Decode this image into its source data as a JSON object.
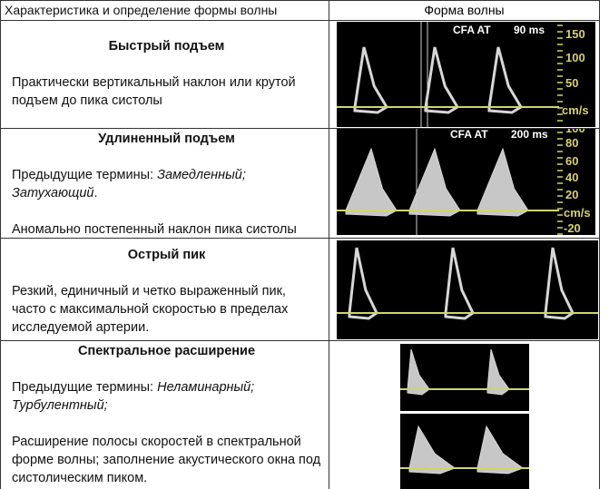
{
  "header": {
    "col1": "Характеристика и определение формы волны",
    "col2": "Форма волны"
  },
  "rows": [
    {
      "title": "Быстрый подъем",
      "paragraphs": [
        [
          {
            "text": "Практически вертикальный наклон или крутой подъем до пика систолы",
            "italic": false
          }
        ]
      ],
      "image": {
        "label": "CFA AT",
        "scale": "90 ms",
        "axis": [
          "150",
          "100",
          "50",
          "cm/s"
        ]
      }
    },
    {
      "title": "Удлиненный подъем",
      "paragraphs": [
        [
          {
            "text": "Предыдущие термины: ",
            "italic": false
          },
          {
            "text": "Замедленный; Затухающий",
            "italic": true
          },
          {
            "text": ".",
            "italic": false
          }
        ],
        [
          {
            "text": "Аномально постепенный наклон пика систолы",
            "italic": false
          }
        ]
      ],
      "image": {
        "label": "CFA AT",
        "scale": "200 ms",
        "axis": [
          "100",
          "80",
          "60",
          "40",
          "20",
          "cm/s",
          "-20"
        ]
      }
    },
    {
      "title": "Острый пик",
      "paragraphs": [
        [
          {
            "text": "Резкий, единичный и четко выраженный пик, часто с максимальной скоростью в пределах исследуемой артерии.",
            "italic": false
          }
        ]
      ]
    },
    {
      "title": "Спектральное расширение",
      "paragraphs": [
        [
          {
            "text": "Предыдущие термины: ",
            "italic": false
          },
          {
            "text": "Неламинарный; Турбулентный;",
            "italic": true
          }
        ],
        [
          {
            "text": "Расширение полосы скоростей в спектральной форме волны; заполнение акустического окна под систолическим пиком.",
            "italic": false
          }
        ]
      ]
    }
  ]
}
